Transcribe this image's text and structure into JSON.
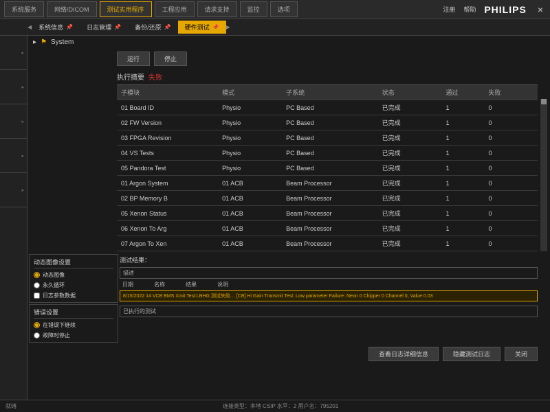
{
  "topnav": {
    "tabs": [
      "系统服务",
      "网络/DICOM",
      "测试实用程序",
      "工程应用",
      "请求支持",
      "监控",
      "选项"
    ],
    "active_index": 2,
    "right": {
      "reg": "注册",
      "help": "帮助",
      "brand": "PHILIPS"
    }
  },
  "subtabs": {
    "items": [
      "系统信息",
      "日志管理",
      "备份/还原",
      "硬件测试"
    ],
    "active_index": 3
  },
  "tree": {
    "root": "System"
  },
  "actions": {
    "run": "运行",
    "stop": "停止"
  },
  "exec": {
    "label": "执行摘要",
    "status": "失败"
  },
  "table": {
    "headers": [
      "子模块",
      "模式",
      "子系统",
      "状态",
      "通过",
      "失败"
    ],
    "rows": [
      [
        "01 Board ID",
        "Physio",
        "PC Based",
        "已完成",
        "1",
        "0"
      ],
      [
        "02 FW Version",
        "Physio",
        "PC Based",
        "已完成",
        "1",
        "0"
      ],
      [
        "03 FPGA Revision",
        "Physio",
        "PC Based",
        "已完成",
        "1",
        "0"
      ],
      [
        "04 VS Tests",
        "Physio",
        "PC Based",
        "已完成",
        "1",
        "0"
      ],
      [
        "05 Pandora Test",
        "Physio",
        "PC Based",
        "已完成",
        "1",
        "0"
      ],
      [
        "01 Argon System",
        "01 ACB",
        "Beam Processor",
        "已完成",
        "1",
        "0"
      ],
      [
        "02 BP Memory B",
        "01 ACB",
        "Beam Processor",
        "已完成",
        "1",
        "0"
      ],
      [
        "05 Xenon Status",
        "01 ACB",
        "Beam Processor",
        "已完成",
        "1",
        "0"
      ],
      [
        "06 Xenon To Arg",
        "01 ACB",
        "Beam Processor",
        "已完成",
        "1",
        "0"
      ],
      [
        "07 Argon To Xen",
        "01 ACB",
        "Beam Processor",
        "已完成",
        "1",
        "0"
      ]
    ]
  },
  "panels": {
    "dynimg": {
      "title": "动态图像设置",
      "opt1": "动态图像",
      "opt2": "永久循环",
      "chk": "日志参数数据"
    },
    "errset": {
      "title": "错误设置",
      "opt1": "在错误下继续",
      "opt2": "故障时停止"
    }
  },
  "results": {
    "title": "测试结果：",
    "desc_label": "描述",
    "log_headers": [
      "日期",
      "名称",
      "结果",
      "说明"
    ],
    "log_line": "8/15/2022   14 VCB BMS Xmit Test:LBHG  测试失败…  [CB] Hi Gain Transmit Test: Low parameter Failure: Neon 0 Chipper 0 Channel 0, Value 0.03",
    "executed_label": "已执行的测试"
  },
  "footer_buttons": {
    "b1": "查看日志详细信息",
    "b2": "隐藏测试日志",
    "b3": "关闭"
  },
  "statusbar": {
    "left": "就绪",
    "center": "连接类型：本地   CSIP 水平：2   用户名：795201"
  }
}
